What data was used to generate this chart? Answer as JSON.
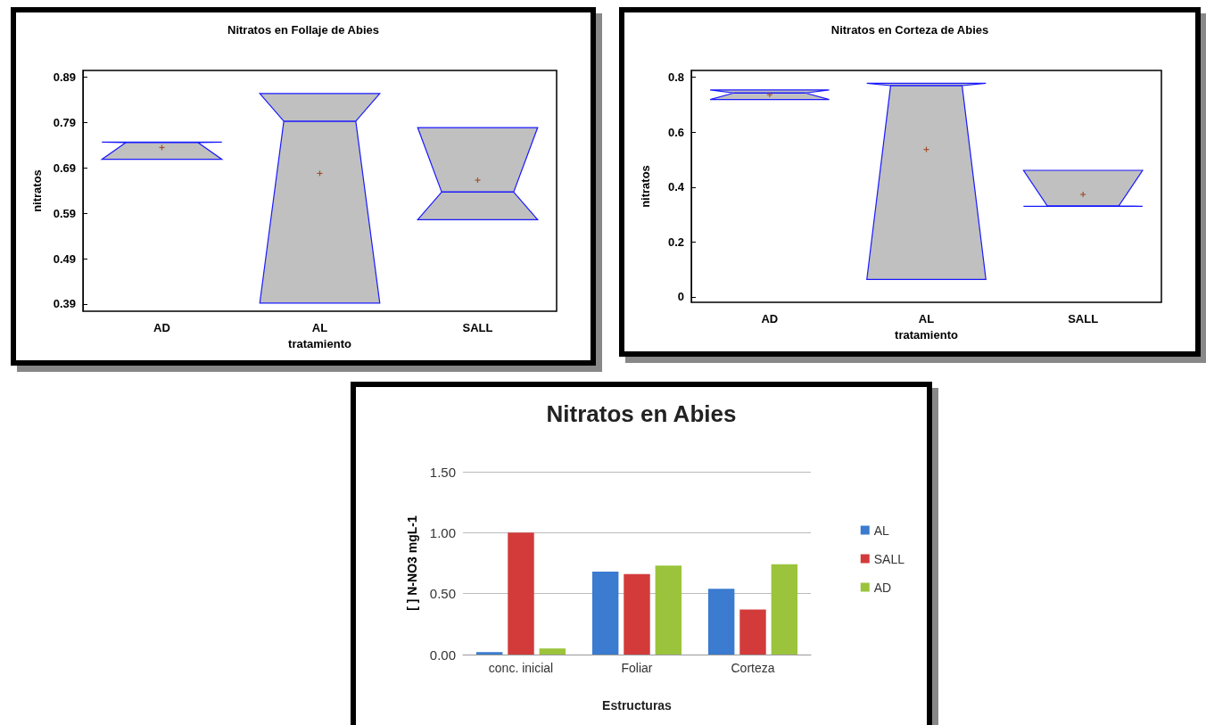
{
  "chart_data": [
    {
      "type": "box",
      "title": "Nitratos en Follaje de Abies",
      "xlabel": "tratamiento",
      "ylabel": "nitratos",
      "categories": [
        "AD",
        "AL",
        "SALL"
      ],
      "boxes": [
        {
          "low": 0.709,
          "q1": 0.709,
          "median": 0.746,
          "q3": 0.747,
          "high": 0.747,
          "mean": 0.735
        },
        {
          "low": 0.392,
          "q1": 0.392,
          "median": 0.793,
          "q3": 0.854,
          "high": 0.854,
          "mean": 0.678
        },
        {
          "low": 0.576,
          "q1": 0.576,
          "median": 0.637,
          "q3": 0.779,
          "high": 0.779,
          "mean": 0.663
        }
      ],
      "ylim": [
        0.374,
        0.905
      ],
      "yticks": [
        0.39,
        0.49,
        0.59,
        0.69,
        0.79,
        0.89
      ]
    },
    {
      "type": "box",
      "title": "Nitratos en Corteza de Abies",
      "xlabel": "tratamiento",
      "ylabel": "nitratos",
      "categories": [
        "AD",
        "AL",
        "SALL"
      ],
      "boxes": [
        {
          "low": 0.719,
          "q1": 0.719,
          "median": 0.743,
          "q3": 0.754,
          "high": 0.754,
          "mean": 0.737
        },
        {
          "low": 0.063,
          "q1": 0.063,
          "median": 0.77,
          "q3": 0.778,
          "high": 0.778,
          "mean": 0.537
        },
        {
          "low": 0.33,
          "q1": 0.33,
          "median": 0.331,
          "q3": 0.461,
          "high": 0.461,
          "mean": 0.373
        }
      ],
      "ylim": [
        -0.02,
        0.825
      ],
      "yticks": [
        0,
        0.2,
        0.4,
        0.6,
        0.8
      ]
    },
    {
      "type": "bar",
      "title": "Nitratos en Abies",
      "xlabel": "Estructuras",
      "ylabel": "[ ] N-NO3 mgL-1",
      "categories": [
        "conc. inicial",
        "Foliar",
        "Corteza"
      ],
      "series": [
        {
          "name": "AL",
          "color": "#3b7bd0",
          "values": [
            0.02,
            0.68,
            0.54
          ]
        },
        {
          "name": "SALL",
          "color": "#d33b3b",
          "values": [
            1.0,
            0.66,
            0.37
          ]
        },
        {
          "name": "AD",
          "color": "#9bc43c",
          "values": [
            0.05,
            0.73,
            0.74
          ]
        }
      ],
      "ylim": [
        0,
        1.5
      ],
      "yticks": [
        {
          "value": 0,
          "label": "0.00"
        },
        {
          "value": 0.5,
          "label": "0.50"
        },
        {
          "value": 1,
          "label": "1.00"
        },
        {
          "value": 1.5,
          "label": "1.50"
        }
      ],
      "grid": "y",
      "legend": "right"
    }
  ]
}
